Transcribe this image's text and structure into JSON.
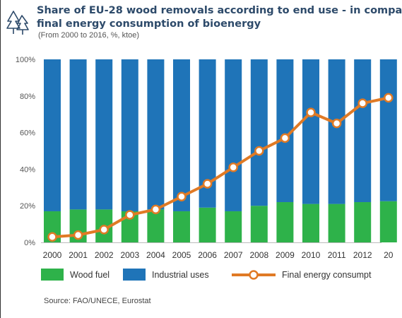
{
  "title_line1": "Share of EU-28 wood removals according to end use - in compa",
  "title_line2": "final energy consumption of bioenergy",
  "subtitle": "(From 2000 to 2016, %, ktoe)",
  "source": "Source: FAO/UNECE, Eurostat",
  "icon": "tree-icon",
  "colors": {
    "wood_fuel": "#2eb24a",
    "industrial": "#1f74b8",
    "final_energy": "#e07a25",
    "title": "#2d4a6a"
  },
  "legend": {
    "wood_fuel": "Wood fuel",
    "industrial": "Industrial uses",
    "final_energy": "Final energy consumpt"
  },
  "chart_data": {
    "type": "bar",
    "stacked": true,
    "categories": [
      "2000",
      "2001",
      "2002",
      "2003",
      "2004",
      "2005",
      "2006",
      "2007",
      "2008",
      "2009",
      "2010",
      "2011",
      "2012",
      "20"
    ],
    "series": [
      {
        "name": "Wood fuel",
        "type": "bar",
        "values": [
          17,
          18,
          18,
          17,
          18,
          17,
          19,
          17,
          20,
          22,
          21,
          21,
          22,
          22.5
        ]
      },
      {
        "name": "Industrial uses",
        "type": "bar",
        "values": [
          83,
          82,
          82,
          83,
          82,
          83,
          81,
          83,
          80,
          78,
          79,
          79,
          78,
          77.5
        ]
      },
      {
        "name": "Final energy consumpt",
        "type": "line",
        "values": [
          3,
          4,
          7,
          15,
          18,
          25,
          32,
          41,
          50,
          57,
          71,
          65,
          76,
          79
        ]
      }
    ],
    "y_ticks": [
      "0%",
      "20%",
      "40%",
      "60%",
      "80%",
      "100%"
    ],
    "ylim": [
      0,
      100
    ],
    "grid": false,
    "legend_position": "bottom"
  }
}
